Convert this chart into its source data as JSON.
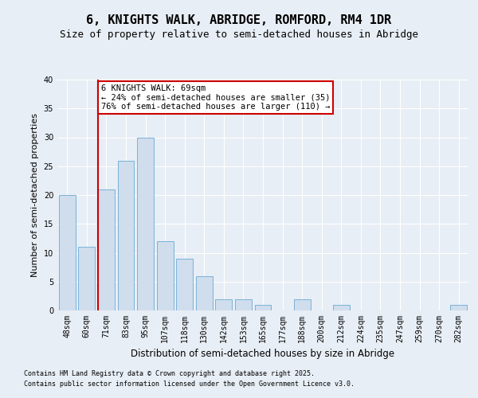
{
  "title": "6, KNIGHTS WALK, ABRIDGE, ROMFORD, RM4 1DR",
  "subtitle": "Size of property relative to semi-detached houses in Abridge",
  "xlabel": "Distribution of semi-detached houses by size in Abridge",
  "ylabel": "Number of semi-detached properties",
  "categories": [
    "48sqm",
    "60sqm",
    "71sqm",
    "83sqm",
    "95sqm",
    "107sqm",
    "118sqm",
    "130sqm",
    "142sqm",
    "153sqm",
    "165sqm",
    "177sqm",
    "188sqm",
    "200sqm",
    "212sqm",
    "224sqm",
    "235sqm",
    "247sqm",
    "259sqm",
    "270sqm",
    "282sqm"
  ],
  "values": [
    20,
    11,
    21,
    26,
    30,
    12,
    9,
    6,
    2,
    2,
    1,
    0,
    2,
    0,
    1,
    0,
    0,
    0,
    0,
    0,
    1
  ],
  "bar_color": "#cfdded",
  "bar_edge_color": "#6aaad4",
  "property_line_index": 2,
  "annotation_text": "6 KNIGHTS WALK: 69sqm\n← 24% of semi-detached houses are smaller (35)\n76% of semi-detached houses are larger (110) →",
  "annotation_box_color": "#ffffff",
  "annotation_box_edge": "#cc0000",
  "property_line_color": "#cc0000",
  "ylim": [
    0,
    40
  ],
  "yticks": [
    0,
    5,
    10,
    15,
    20,
    25,
    30,
    35,
    40
  ],
  "footer1": "Contains HM Land Registry data © Crown copyright and database right 2025.",
  "footer2": "Contains public sector information licensed under the Open Government Licence v3.0.",
  "background_color": "#e8eef5",
  "plot_bg_color": "#e8eef5",
  "grid_color": "#ffffff",
  "title_fontsize": 11,
  "subtitle_fontsize": 9,
  "tick_fontsize": 7,
  "ylabel_fontsize": 8,
  "xlabel_fontsize": 8.5,
  "footer_fontsize": 6,
  "annotation_fontsize": 7.5
}
